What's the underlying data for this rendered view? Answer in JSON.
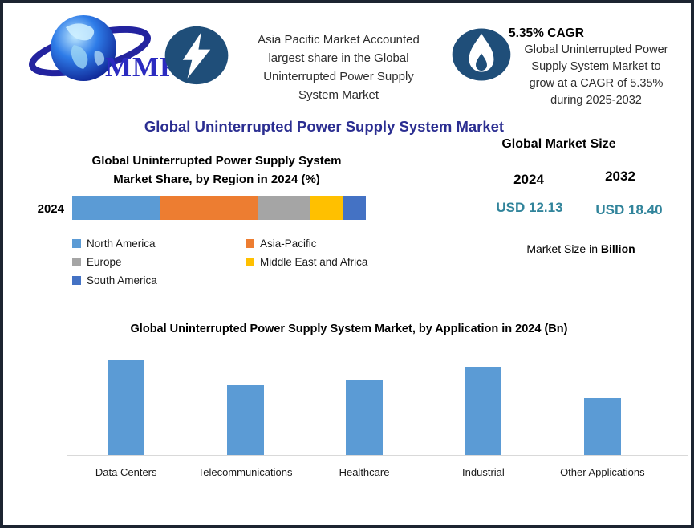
{
  "title": {
    "text": "Global Uninterrupted Power Supply System Market"
  },
  "logo": {
    "text": "MMR"
  },
  "header": {
    "highlight": {
      "lines": [
        "Asia Pacific Market Accounted",
        "largest share in the Global",
        "Uninterrupted  Power Supply",
        "System Market"
      ]
    },
    "cagr": {
      "headline": "5.35% CAGR",
      "lines": [
        "Global Uninterrupted Power",
        "Supply System Market to",
        "grow at a CAGR of 5.35%",
        "during 2025-2032"
      ]
    }
  },
  "market_size": {
    "heading": "Global Market Size",
    "years": [
      "2024",
      "2032"
    ],
    "values": [
      "USD 12.13",
      "USD 18.40"
    ],
    "note_prefix": "Market Size in",
    "note_bold": "Billion"
  },
  "colors": {
    "badge": "#1F4E79",
    "main_title": "#2B2E91",
    "market_value": "#31849B",
    "application_bar": "#5B9BD5",
    "frame_border": "#1c2431"
  },
  "chart_data": [
    {
      "type": "bar",
      "variant": "stacked-horizontal",
      "title": "Global Uninterrupted Power Supply System Market Share, by Region in 2024 (%)",
      "title_lines": [
        "Global Uninterrupted Power Supply System",
        "Market Share, by Region in 2024 (%)"
      ],
      "categories": [
        "2024"
      ],
      "series": [
        {
          "name": "North America",
          "values": [
            30
          ],
          "color": "#5B9BD5"
        },
        {
          "name": "Asia-Pacific",
          "values": [
            33
          ],
          "color": "#ED7D31"
        },
        {
          "name": "Europe",
          "values": [
            18
          ],
          "color": "#A5A5A5"
        },
        {
          "name": "Middle East and Africa",
          "values": [
            11
          ],
          "color": "#FFC000"
        },
        {
          "name": "South America",
          "values": [
            8
          ],
          "color": "#4472C4"
        }
      ],
      "xlim": [
        0,
        100
      ],
      "grid": false,
      "legend_position": "bottom"
    },
    {
      "type": "bar",
      "title": "Global Uninterrupted Power Supply System Market, by Application  in 2024 (Bn)",
      "categories": [
        "Data Centers",
        "Telecommunications",
        "Healthcare",
        "Industrial",
        "Other Applications"
      ],
      "values": [
        3.0,
        2.2,
        2.4,
        2.8,
        1.8
      ],
      "bar_color": "#5B9BD5",
      "ylim": [
        0,
        3.2
      ],
      "xlabel": "",
      "ylabel": "",
      "grid": false,
      "legend_position": "none"
    }
  ]
}
